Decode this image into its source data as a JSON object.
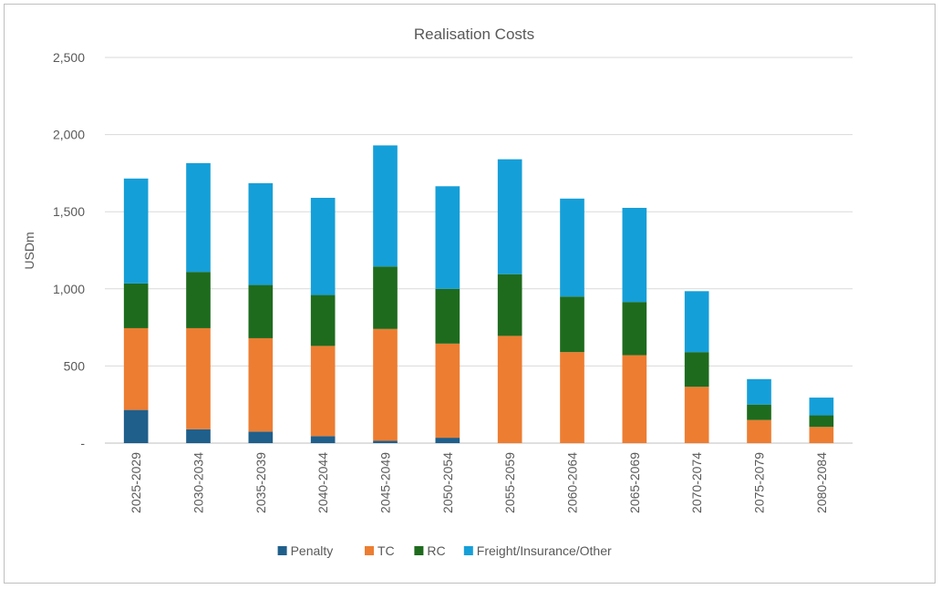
{
  "chart_data": {
    "type": "bar",
    "stacked": true,
    "title": "Realisation Costs",
    "xlabel": "",
    "ylabel": "USDm",
    "ylim": [
      0,
      2500
    ],
    "yticks": [
      0,
      500,
      1000,
      1500,
      2000,
      2500
    ],
    "ytick_labels": [
      "-",
      "500",
      "1,000",
      "1,500",
      "2,000",
      "2,500"
    ],
    "grid": true,
    "legend_position": "bottom",
    "categories": [
      "2025-2029",
      "2030-2034",
      "2035-2039",
      "2040-2044",
      "2045-2049",
      "2050-2054",
      "2055-2059",
      "2060-2064",
      "2065-2069",
      "2070-2074",
      "2075-2079",
      "2080-2084"
    ],
    "series": [
      {
        "name": "Penalty",
        "color": "#1f5f8b",
        "values": [
          215,
          90,
          75,
          45,
          15,
          35,
          0,
          0,
          0,
          0,
          0,
          0
        ]
      },
      {
        "name": "TC",
        "color": "#ed7d31",
        "values": [
          530,
          655,
          605,
          585,
          725,
          610,
          695,
          590,
          570,
          365,
          150,
          105
        ]
      },
      {
        "name": "RC",
        "color": "#1e6b1e",
        "values": [
          290,
          365,
          345,
          330,
          405,
          355,
          400,
          360,
          345,
          225,
          100,
          75
        ]
      },
      {
        "name": "Freight/Insurance/Other",
        "color": "#159fd8",
        "values": [
          680,
          705,
          660,
          630,
          785,
          665,
          745,
          635,
          610,
          395,
          165,
          115
        ]
      }
    ]
  }
}
